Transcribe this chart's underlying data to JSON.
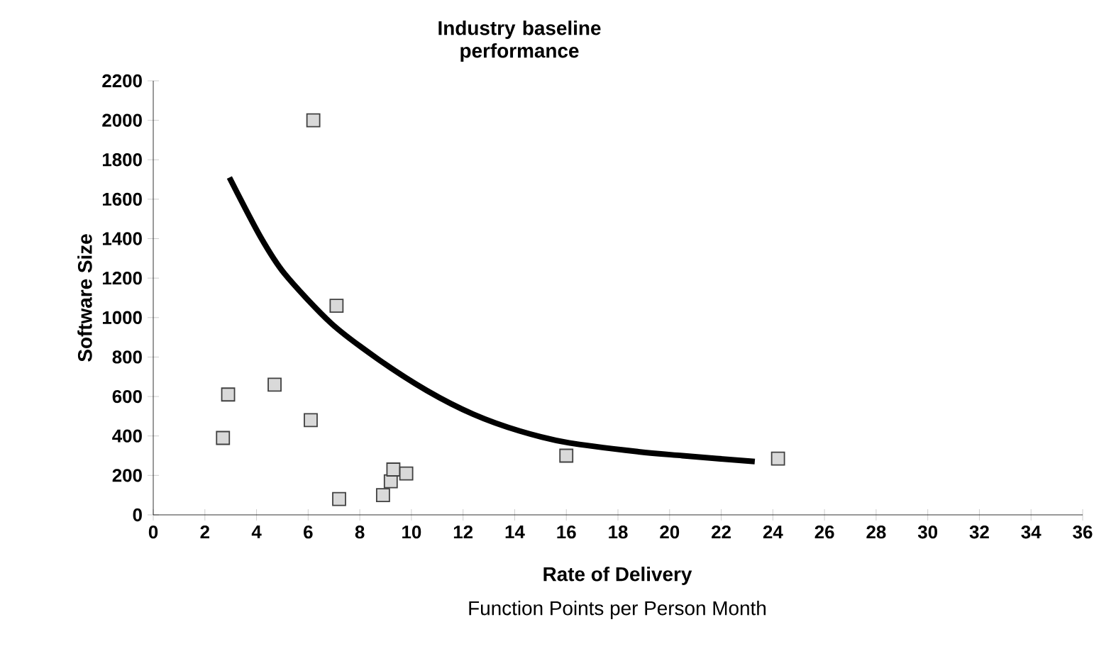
{
  "chart_data": {
    "type": "scatter",
    "title": "Industry baseline performance",
    "xlabel": "Rate of Delivery",
    "ylabel": "Software Size",
    "annotations": [
      "Function Points per Person Month"
    ],
    "xlim": [
      0,
      36
    ],
    "xticks": [
      0,
      2,
      4,
      6,
      8,
      10,
      12,
      14,
      16,
      18,
      20,
      22,
      24,
      26,
      28,
      30,
      32,
      34,
      36
    ],
    "ylim": [
      0,
      2200
    ],
    "yticks": [
      0,
      200,
      400,
      600,
      800,
      1000,
      1200,
      1400,
      1600,
      1800,
      2000,
      2200
    ],
    "grid": false,
    "series": [
      {
        "type": "scatter",
        "color": "#d9d9d9",
        "marker": "square",
        "x": [
          6.2,
          7.1,
          2.9,
          2.7,
          4.7,
          6.1,
          7.2,
          8.9,
          9.2,
          9.3,
          9.8,
          16.0,
          24.2
        ],
        "values": [
          2000,
          1060,
          610,
          390,
          660,
          480,
          80,
          100,
          170,
          230,
          210,
          300,
          285
        ]
      },
      {
        "type": "line",
        "color": "#000000",
        "marker": "none",
        "line_style": "solid",
        "x": [
          2.95,
          4.15,
          5.1,
          6.9,
          8.7,
          10.6,
          12.4,
          14.2,
          16.1,
          18.8,
          20.5,
          23.3
        ],
        "values": [
          1710,
          1410,
          1220,
          970,
          790,
          630,
          510,
          425,
          365,
          320,
          300,
          270
        ]
      }
    ]
  }
}
